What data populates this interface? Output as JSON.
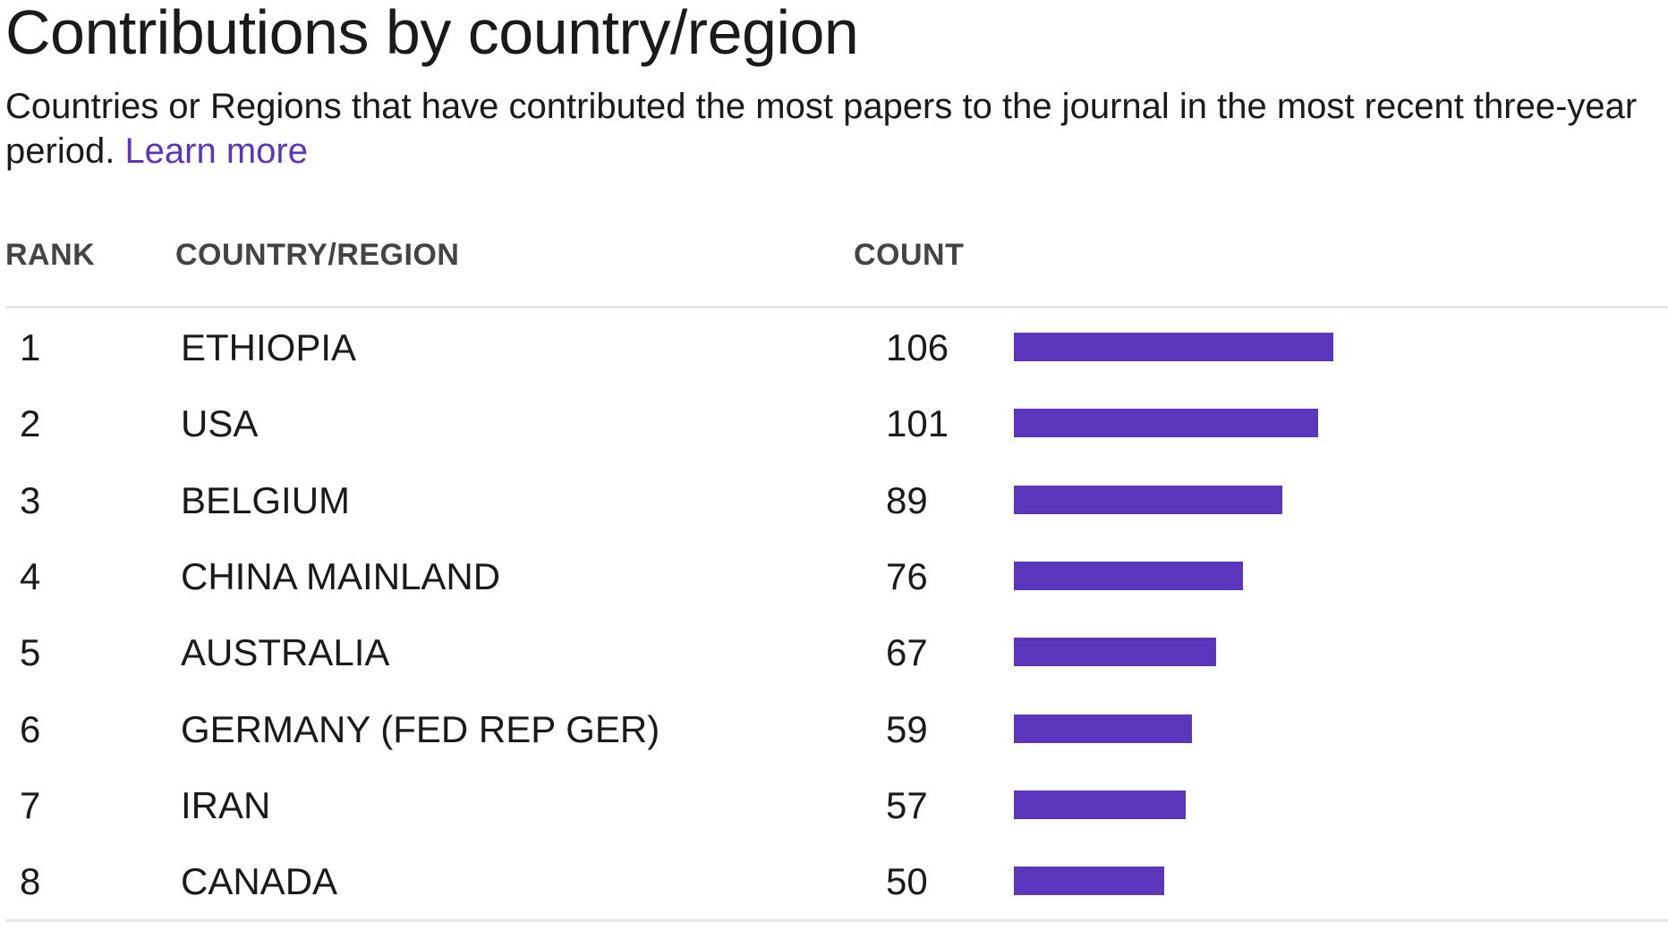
{
  "header": {
    "title": "Contributions by country/region",
    "subtitle": "Countries or Regions that have contributed the most papers to the journal in the most recent three-year period.",
    "learn_more": "Learn more"
  },
  "table": {
    "columns": {
      "rank": "RANK",
      "country": "COUNTRY/REGION",
      "count": "COUNT"
    }
  },
  "colors": {
    "bar": "#5a36bd",
    "link": "#5a36bd"
  },
  "chart_data": {
    "type": "bar",
    "orientation": "horizontal",
    "columns": [
      "RANK",
      "COUNTRY/REGION",
      "COUNT"
    ],
    "rows": [
      {
        "rank": "1",
        "country": "ETHIOPIA",
        "count": 106
      },
      {
        "rank": "2",
        "country": "USA",
        "count": 101
      },
      {
        "rank": "3",
        "country": "BELGIUM",
        "count": 89
      },
      {
        "rank": "4",
        "country": "CHINA MAINLAND",
        "count": 76
      },
      {
        "rank": "5",
        "country": "AUSTRALIA",
        "count": 67
      },
      {
        "rank": "6",
        "country": "GERMANY (FED REP GER)",
        "count": 59
      },
      {
        "rank": "7",
        "country": "IRAN",
        "count": 57
      },
      {
        "rank": "8",
        "country": "CANADA",
        "count": 50
      }
    ],
    "xlim": [
      0,
      106
    ],
    "grid": false,
    "legend": "none"
  }
}
